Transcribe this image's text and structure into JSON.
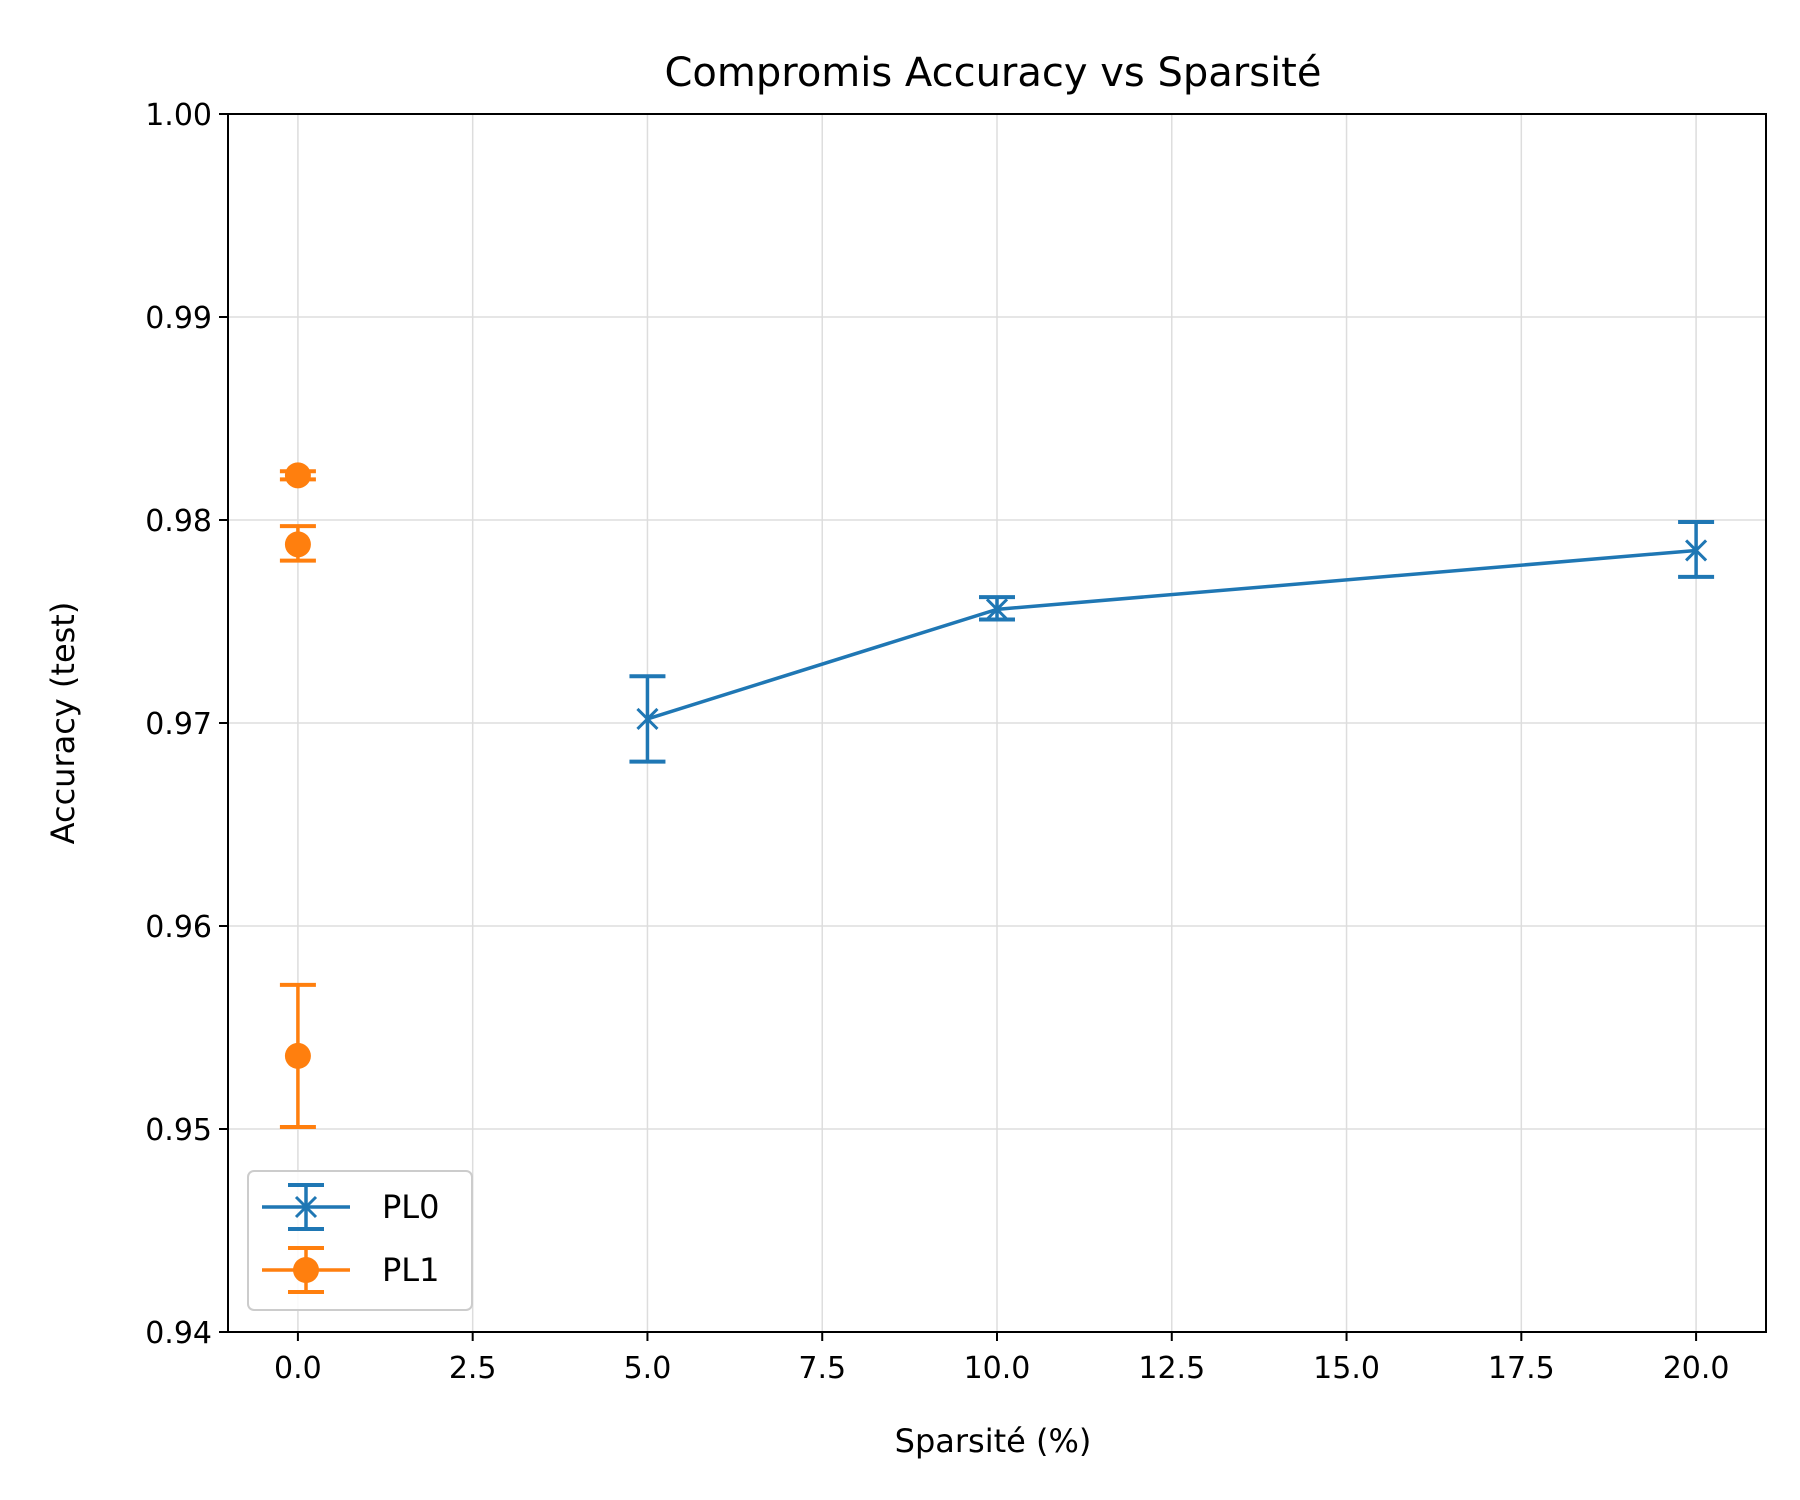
{
  "chart_data": {
    "type": "scatter",
    "title": "Compromis Accuracy vs Sparsité",
    "xlabel": "Sparsité (%)",
    "ylabel": "Accuracy (test)",
    "xlim": [
      -1.0,
      21.0
    ],
    "ylim": [
      0.94,
      1.0
    ],
    "xticks": [
      "0.0",
      "2.5",
      "5.0",
      "7.5",
      "10.0",
      "12.5",
      "15.0",
      "17.5",
      "20.0"
    ],
    "yticks": [
      "0.94",
      "0.95",
      "0.96",
      "0.97",
      "0.98",
      "0.99",
      "1.00"
    ],
    "grid": true,
    "legend_position": "lower-left",
    "series": [
      {
        "name": "PL0",
        "color": "#1f77b4",
        "marker": "x",
        "line": true,
        "points": [
          {
            "x": 5.0,
            "y": 0.9702,
            "err_low": 0.9681,
            "err_high": 0.9723
          },
          {
            "x": 10.0,
            "y": 0.9756,
            "err_low": 0.9751,
            "err_high": 0.9762
          },
          {
            "x": 20.0,
            "y": 0.9785,
            "err_low": 0.9772,
            "err_high": 0.9799
          }
        ]
      },
      {
        "name": "PL1",
        "color": "#ff7f0e",
        "marker": "o",
        "line": false,
        "points": [
          {
            "x": 0.0,
            "y": 0.9822,
            "err_low": 0.982,
            "err_high": 0.9824
          },
          {
            "x": 0.0,
            "y": 0.9788,
            "err_low": 0.978,
            "err_high": 0.9797
          },
          {
            "x": 0.0,
            "y": 0.9536,
            "err_low": 0.9501,
            "err_high": 0.9571
          }
        ]
      }
    ]
  }
}
